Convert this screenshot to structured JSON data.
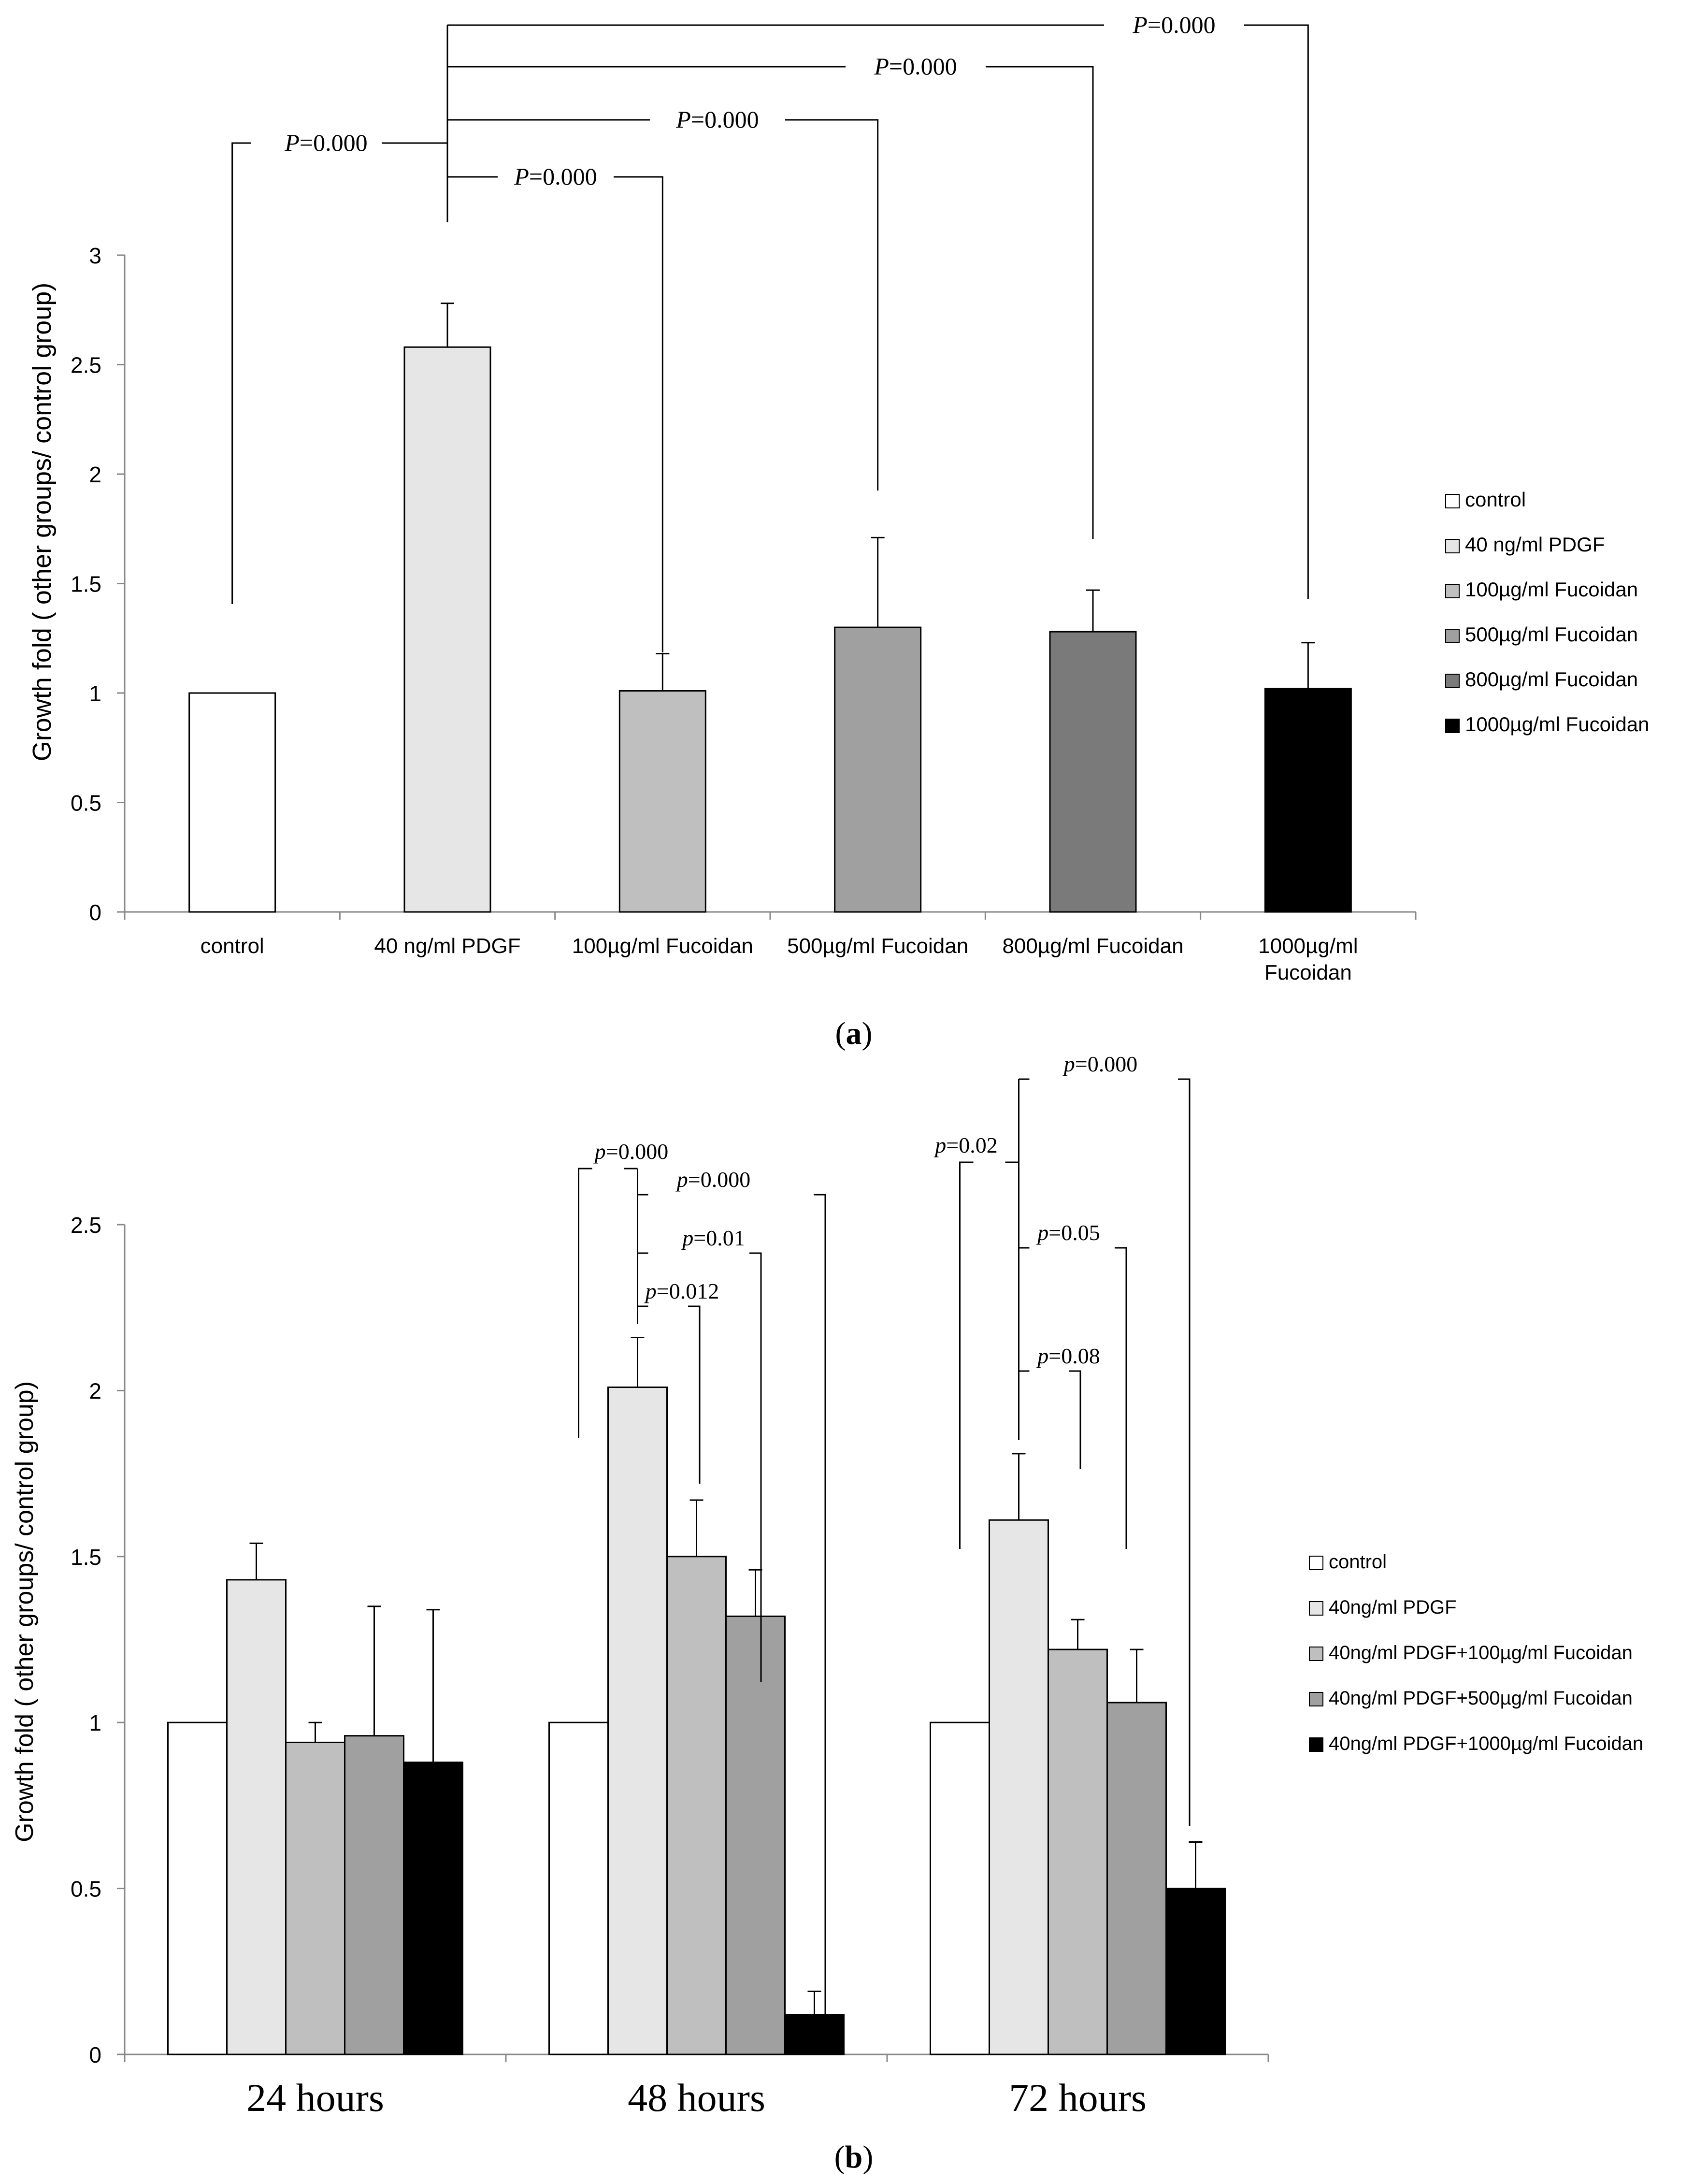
{
  "chart_data": [
    {
      "type": "bar",
      "panel_label": "a",
      "ylabel": "Growth fold ( other groups/ control group)",
      "xlabel": "",
      "ylim": [
        0,
        3
      ],
      "yticks": [
        "0",
        "0.5",
        "1",
        "1.5",
        "2",
        "2.5",
        "3"
      ],
      "category_labels": [
        [
          "control"
        ],
        [
          "40 ng/ml PDGF"
        ],
        [
          "100µg/ml Fucoidan"
        ],
        [
          "500µg/ml Fucoidan"
        ],
        [
          "800µg/ml Fucoidan"
        ],
        [
          "1000µg/ml",
          "Fucoidan"
        ]
      ],
      "values": [
        1.0,
        2.58,
        1.01,
        1.3,
        1.28,
        1.02
      ],
      "errors": [
        0.0,
        0.2,
        0.17,
        0.41,
        0.19,
        0.21
      ],
      "colors": [
        "#ffffff",
        "#e6e6e6",
        "#bfbfbf",
        "#a0a0a0",
        "#7a7a7a",
        "#000000"
      ],
      "legend": [
        "control",
        "40 ng/ml PDGF",
        "100µg/ml Fucoidan",
        "500µg/ml Fucoidan",
        "800µg/ml Fucoidan",
        "1000µg/ml Fucoidan"
      ],
      "significance": [
        {
          "prefix": "P",
          "value": "=0.000",
          "from": 0,
          "to": 1
        },
        {
          "prefix": "P",
          "value": "=0.000",
          "from": 1,
          "to": 2
        },
        {
          "prefix": "P",
          "value": "=0.000",
          "from": 1,
          "to": 3
        },
        {
          "prefix": "P",
          "value": "=0.000",
          "from": 1,
          "to": 4
        },
        {
          "prefix": "P",
          "value": "=0.000",
          "from": 1,
          "to": 5
        }
      ]
    },
    {
      "type": "bar",
      "panel_label": "b",
      "ylabel": "Growth fold ( other groups/ control group)",
      "xlabel": "",
      "ylim": [
        0,
        2.5
      ],
      "yticks": [
        "0",
        "0.5",
        "1",
        "1.5",
        "2",
        "2.5"
      ],
      "categories": [
        "24 hours",
        "48 hours",
        "72 hours"
      ],
      "series": [
        {
          "name": "control",
          "color": "#ffffff",
          "values": [
            1.0,
            1.0,
            1.0
          ],
          "errors": [
            0,
            0,
            0
          ]
        },
        {
          "name": "40ng/ml PDGF",
          "color": "#e6e6e6",
          "values": [
            1.43,
            2.01,
            1.61
          ],
          "errors": [
            0.11,
            0.15,
            0.2
          ]
        },
        {
          "name": "40ng/ml PDGF+100µg/ml Fucoidan",
          "color": "#bfbfbf",
          "values": [
            0.94,
            1.5,
            1.22
          ],
          "errors": [
            0.06,
            0.17,
            0.09
          ]
        },
        {
          "name": "40ng/ml PDGF+500µg/ml Fucoidan",
          "color": "#a0a0a0",
          "values": [
            0.96,
            1.32,
            1.06
          ],
          "errors": [
            0.39,
            0.14,
            0.16
          ]
        },
        {
          "name": "40ng/ml PDGF+1000µg/ml Fucoidan",
          "color": "#000000",
          "values": [
            0.88,
            0.12,
            0.5
          ],
          "errors": [
            0.46,
            0.07,
            0.14
          ]
        }
      ],
      "significance": [
        {
          "group": 1,
          "prefix": "p",
          "value": "=0.000",
          "from": 0,
          "to": 1
        },
        {
          "group": 1,
          "prefix": "p",
          "value": "=0.000",
          "from": 1,
          "to": 4
        },
        {
          "group": 1,
          "prefix": "p",
          "value": "=0.01",
          "from": 1,
          "to": 3
        },
        {
          "group": 1,
          "prefix": "p",
          "value": "=0.012",
          "from": 1,
          "to": 2
        },
        {
          "group": 2,
          "prefix": "p",
          "value": "=0.02",
          "from": 0,
          "to": 1
        },
        {
          "group": 2,
          "prefix": "p",
          "value": "=0.000",
          "from": 1,
          "to": 4
        },
        {
          "group": 2,
          "prefix": "p",
          "value": "=0.05",
          "from": 1,
          "to": 3
        },
        {
          "group": 2,
          "prefix": "p",
          "value": "=0.08",
          "from": 1,
          "to": 2
        }
      ]
    }
  ]
}
